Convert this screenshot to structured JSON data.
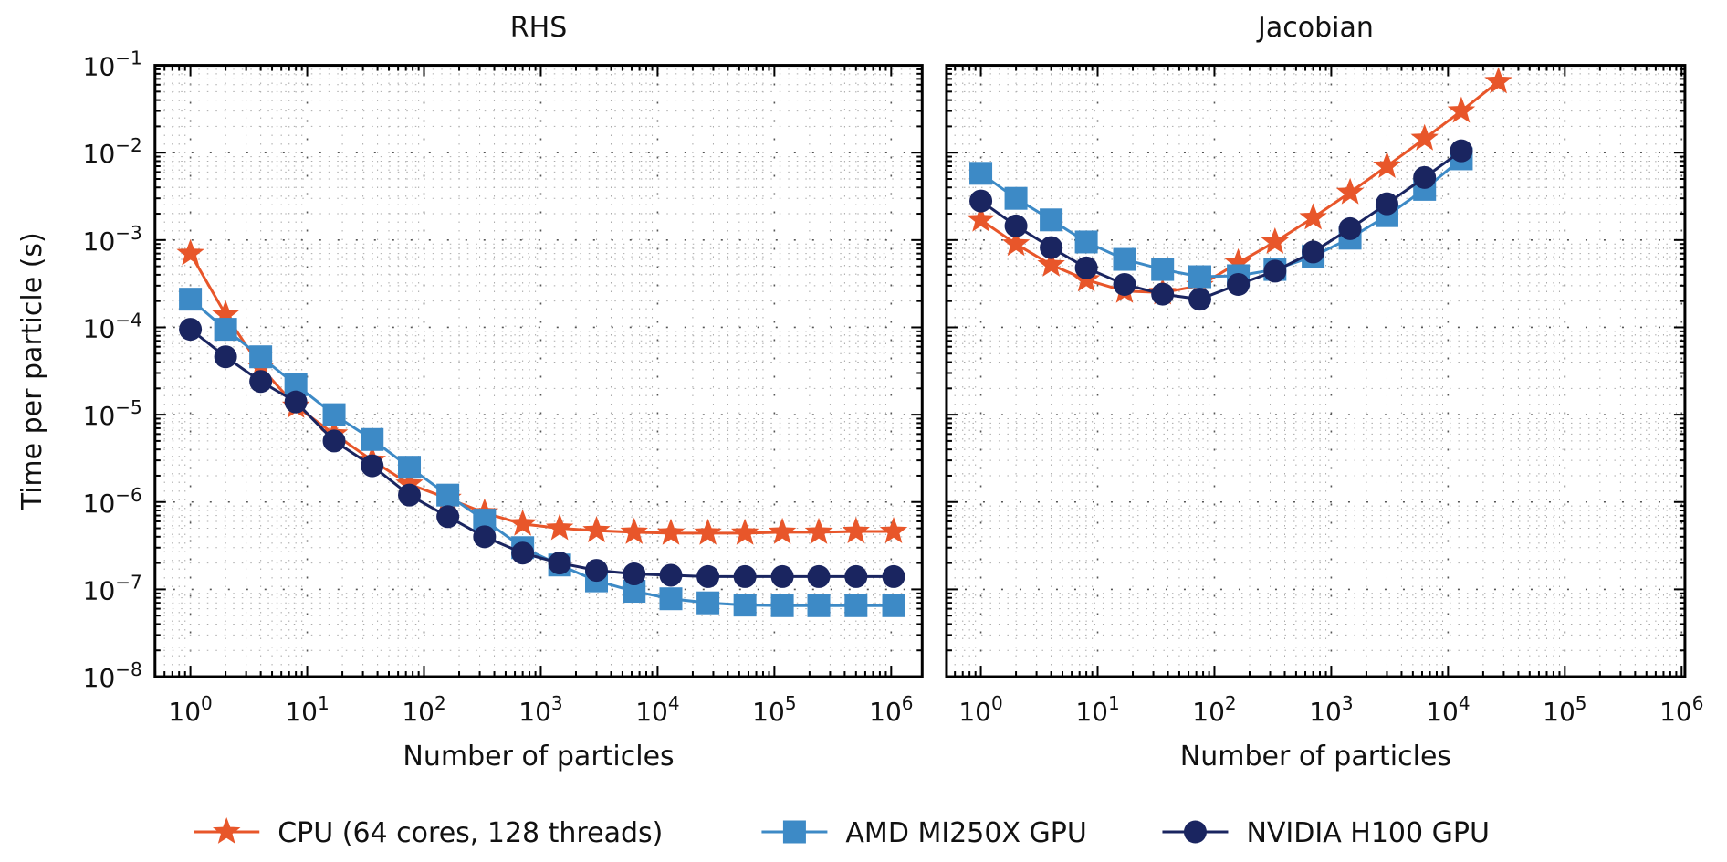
{
  "chart_data": [
    {
      "type": "line",
      "title": "RHS",
      "xlabel": "Number of particles",
      "ylabel": "Time per particle (s)",
      "xscale": "log",
      "yscale": "log",
      "xlim": [
        0.5,
        1500000
      ],
      "ylim": [
        1e-08,
        0.1
      ],
      "grid": true,
      "xticks": [
        1,
        10,
        100,
        1000,
        10000,
        100000,
        1000000
      ],
      "xtick_labels": [
        [
          "10",
          "0"
        ],
        [
          "10",
          "1"
        ],
        [
          "10",
          "2"
        ],
        [
          "10",
          "3"
        ],
        [
          "10",
          "4"
        ],
        [
          "10",
          "5"
        ],
        [
          "10",
          "6"
        ]
      ],
      "yticks": [
        1e-08,
        1e-07,
        1e-06,
        1e-05,
        0.0001,
        0.001,
        0.01,
        0.1
      ],
      "ytick_labels": [
        [
          "10",
          "−8"
        ],
        [
          "10",
          "−7"
        ],
        [
          "10",
          "−6"
        ],
        [
          "10",
          "−5"
        ],
        [
          "10",
          "−4"
        ],
        [
          "10",
          "−3"
        ],
        [
          "10",
          "−2"
        ],
        [
          "10",
          "−1"
        ]
      ],
      "x": [
        1,
        2,
        4,
        8,
        17,
        36,
        75,
        160,
        330,
        700,
        1450,
        3000,
        6300,
        13000,
        27000,
        56000,
        117000,
        240000,
        500000,
        1050000
      ],
      "series": [
        {
          "name": "CPU (64 cores, 128 threads)",
          "values": [
            0.0007,
            0.00014,
            3.5e-05,
            1.25e-05,
            6e-06,
            3e-06,
            1.6e-06,
            1.1e-06,
            7.5e-07,
            5.6e-07,
            5e-07,
            4.7e-07,
            4.5e-07,
            4.4e-07,
            4.4e-07,
            4.4e-07,
            4.5e-07,
            4.5e-07,
            4.6e-07,
            4.6e-07
          ]
        },
        {
          "name": "AMD MI250X GPU",
          "values": [
            0.00021,
            9.5e-05,
            4.6e-05,
            2.2e-05,
            1e-05,
            5.2e-06,
            2.5e-06,
            1.2e-06,
            6.2e-07,
            3e-07,
            1.9e-07,
            1.25e-07,
            9.5e-08,
            7.8e-08,
            7e-08,
            6.6e-08,
            6.5e-08,
            6.5e-08,
            6.5e-08,
            6.5e-08
          ]
        },
        {
          "name": "NVIDIA H100 GPU",
          "values": [
            9.5e-05,
            4.6e-05,
            2.4e-05,
            1.4e-05,
            5e-06,
            2.6e-06,
            1.2e-06,
            6.8e-07,
            4e-07,
            2.6e-07,
            2e-07,
            1.65e-07,
            1.5e-07,
            1.45e-07,
            1.4e-07,
            1.4e-07,
            1.4e-07,
            1.4e-07,
            1.4e-07,
            1.4e-07
          ]
        }
      ]
    },
    {
      "type": "line",
      "title": "Jacobian",
      "xlabel": "Number of particles",
      "ylabel": "",
      "xscale": "log",
      "yscale": "log",
      "xlim": [
        0.5,
        1500000
      ],
      "ylim": [
        1e-08,
        0.1
      ],
      "grid": true,
      "xticks": [
        1,
        10,
        100,
        1000,
        10000,
        100000,
        1000000
      ],
      "xtick_labels": [
        [
          "10",
          "0"
        ],
        [
          "10",
          "1"
        ],
        [
          "10",
          "2"
        ],
        [
          "10",
          "3"
        ],
        [
          "10",
          "4"
        ],
        [
          "10",
          "5"
        ],
        [
          "10",
          "6"
        ]
      ],
      "x": [
        1,
        2,
        4,
        8,
        17,
        36,
        75,
        160,
        330,
        700,
        1450,
        3000,
        6300,
        13000,
        27000
      ],
      "series": [
        {
          "name": "CPU (64 cores, 128 threads)",
          "values": [
            0.0017,
            0.0009,
            0.00052,
            0.00035,
            0.00026,
            0.00025,
            0.0003,
            0.00055,
            0.00095,
            0.0018,
            0.0035,
            0.007,
            0.0145,
            0.03,
            0.065
          ]
        },
        {
          "name": "AMD MI250X GPU",
          "values": [
            0.0058,
            0.003,
            0.0017,
            0.00095,
            0.0006,
            0.00046,
            0.00038,
            0.00039,
            0.00046,
            0.00065,
            0.00105,
            0.0019,
            0.0038,
            0.0085
          ]
        },
        {
          "name": "NVIDIA H100 GPU",
          "values": [
            0.0028,
            0.00145,
            0.00082,
            0.00048,
            0.00031,
            0.00024,
            0.00021,
            0.00031,
            0.00044,
            0.00073,
            0.00135,
            0.0026,
            0.0052,
            0.0105
          ]
        }
      ]
    }
  ],
  "legend": {
    "placement": "bottom-center",
    "entries": [
      {
        "label": "CPU (64 cores, 128 threads)",
        "marker": "star",
        "color": "#E8562A"
      },
      {
        "label": "AMD MI250X GPU",
        "marker": "square",
        "color": "#3D8AC6"
      },
      {
        "label": "NVIDIA H100 GPU",
        "marker": "circle",
        "color": "#1A2560"
      }
    ]
  },
  "colors": {
    "cpu": "#E8562A",
    "amd": "#3D8AC6",
    "nvidia": "#1A2560",
    "axis": "#000000",
    "grid": "#888888"
  }
}
